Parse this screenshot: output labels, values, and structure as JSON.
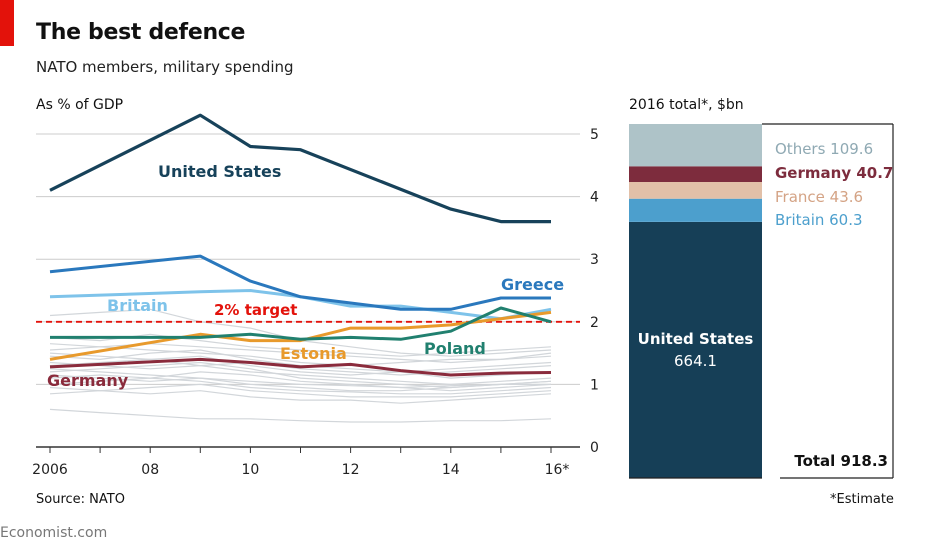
{
  "header": {
    "title": "The best defence",
    "subtitle": "NATO members, military spending"
  },
  "colors": {
    "accent_red": "#e3120b",
    "united_states": "#17425a",
    "greece": "#2a78bd",
    "britain": "#7ec3ea",
    "estonia": "#e89a2c",
    "poland": "#21806f",
    "germany": "#8a2b3c",
    "others": "#d2d6da",
    "stack_others": "#aec3c8",
    "stack_germany": "#7d2c3d",
    "stack_france": "#e2c0a8",
    "stack_britain": "#4c9fcd",
    "stack_us": "#163f57"
  },
  "chart_data": [
    {
      "type": "line",
      "title": "As % of GDP",
      "x": [
        2006,
        2007,
        2008,
        2009,
        2010,
        2011,
        2012,
        2013,
        2014,
        2015,
        2016
      ],
      "x_tick_labels": [
        "2006",
        "08",
        "10",
        "12",
        "14",
        "16*"
      ],
      "y_ticks": [
        "0",
        "1",
        "2",
        "3",
        "4",
        "5"
      ],
      "ylim": [
        0,
        5.5
      ],
      "grid": true,
      "series": [
        {
          "name": "United States",
          "values": [
            4.1,
            null,
            null,
            5.3,
            4.8,
            4.75,
            null,
            null,
            3.8,
            3.6,
            3.6
          ]
        },
        {
          "name": "Greece",
          "values": [
            2.8,
            null,
            null,
            3.05,
            2.65,
            2.4,
            2.3,
            2.2,
            2.2,
            2.38,
            2.38
          ]
        },
        {
          "name": "Britain",
          "values": [
            2.4,
            null,
            null,
            2.48,
            2.5,
            2.4,
            2.25,
            2.25,
            2.15,
            2.05,
            2.2
          ]
        },
        {
          "name": "Estonia",
          "values": [
            1.4,
            null,
            null,
            1.8,
            1.7,
            1.7,
            1.9,
            1.9,
            1.95,
            2.05,
            2.15
          ]
        },
        {
          "name": "Poland",
          "values": [
            1.75,
            null,
            null,
            1.75,
            1.8,
            1.72,
            1.75,
            1.72,
            1.85,
            2.22,
            2.0
          ]
        },
        {
          "name": "Germany",
          "values": [
            1.28,
            null,
            null,
            1.4,
            1.35,
            1.28,
            1.32,
            1.22,
            1.15,
            1.18,
            1.19
          ]
        }
      ],
      "background_series_count": 16,
      "annotations": [
        {
          "label": "2% target",
          "y": 2
        }
      ]
    },
    {
      "type": "bar",
      "title": "2016 total*, $bn",
      "stacked": true,
      "series": [
        {
          "name": "United States",
          "value": 664.1
        },
        {
          "name": "Britain",
          "value": 60.3
        },
        {
          "name": "France",
          "value": 43.6
        },
        {
          "name": "Germany",
          "value": 40.7
        },
        {
          "name": "Others",
          "value": 109.6
        }
      ],
      "total_label": "Total 918.3",
      "total": 918.3
    }
  ],
  "source": "Source: NATO",
  "footnote": "*Estimate",
  "brand": "Economist.com"
}
